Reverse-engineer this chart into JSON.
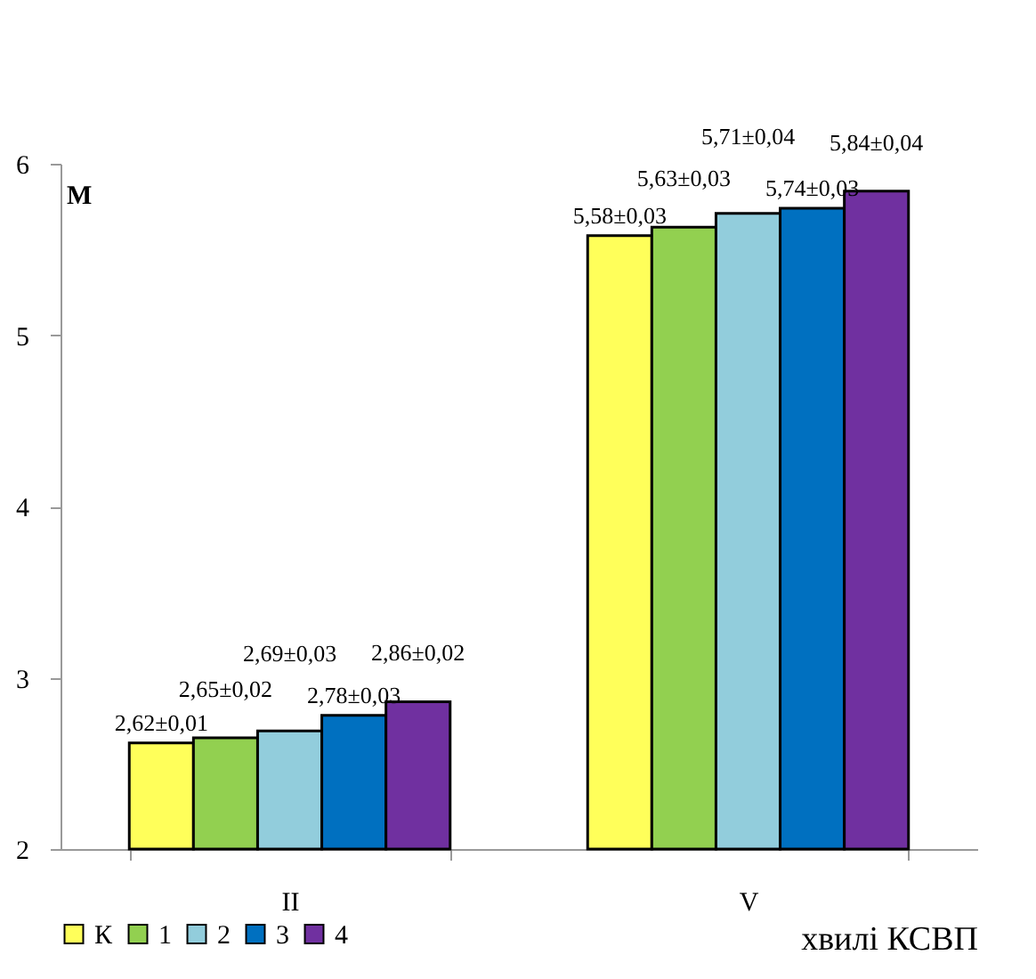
{
  "chart_data": {
    "type": "bar",
    "xlabel": "хвилі КСВП",
    "ylabel": "М",
    "categories": [
      "II",
      "V"
    ],
    "series": [
      {
        "name": "К",
        "color": "#ffff5a",
        "values": [
          2.62,
          5.58
        ],
        "value_labels": [
          "2,62±0,01",
          "5,58±0,03"
        ]
      },
      {
        "name": "1",
        "color": "#92d050",
        "values": [
          2.65,
          5.63
        ],
        "value_labels": [
          "2,65±0,02",
          "5,63±0,03"
        ]
      },
      {
        "name": "2",
        "color": "#92cddc",
        "values": [
          2.69,
          5.71
        ],
        "value_labels": [
          "2,69±0,03",
          "5,71±0,04"
        ]
      },
      {
        "name": "3",
        "color": "#0070c0",
        "values": [
          2.78,
          5.74
        ],
        "value_labels": [
          "2,78±0,03",
          "5,74±0,03"
        ]
      },
      {
        "name": "4",
        "color": "#7030a0",
        "values": [
          2.86,
          5.84
        ],
        "value_labels": [
          "2,86±0,02",
          "5,84±0,04"
        ]
      }
    ],
    "ylim": [
      2,
      6
    ],
    "yticks": [
      2,
      3,
      4,
      5,
      6
    ],
    "grid": false,
    "legend": "bottom"
  }
}
